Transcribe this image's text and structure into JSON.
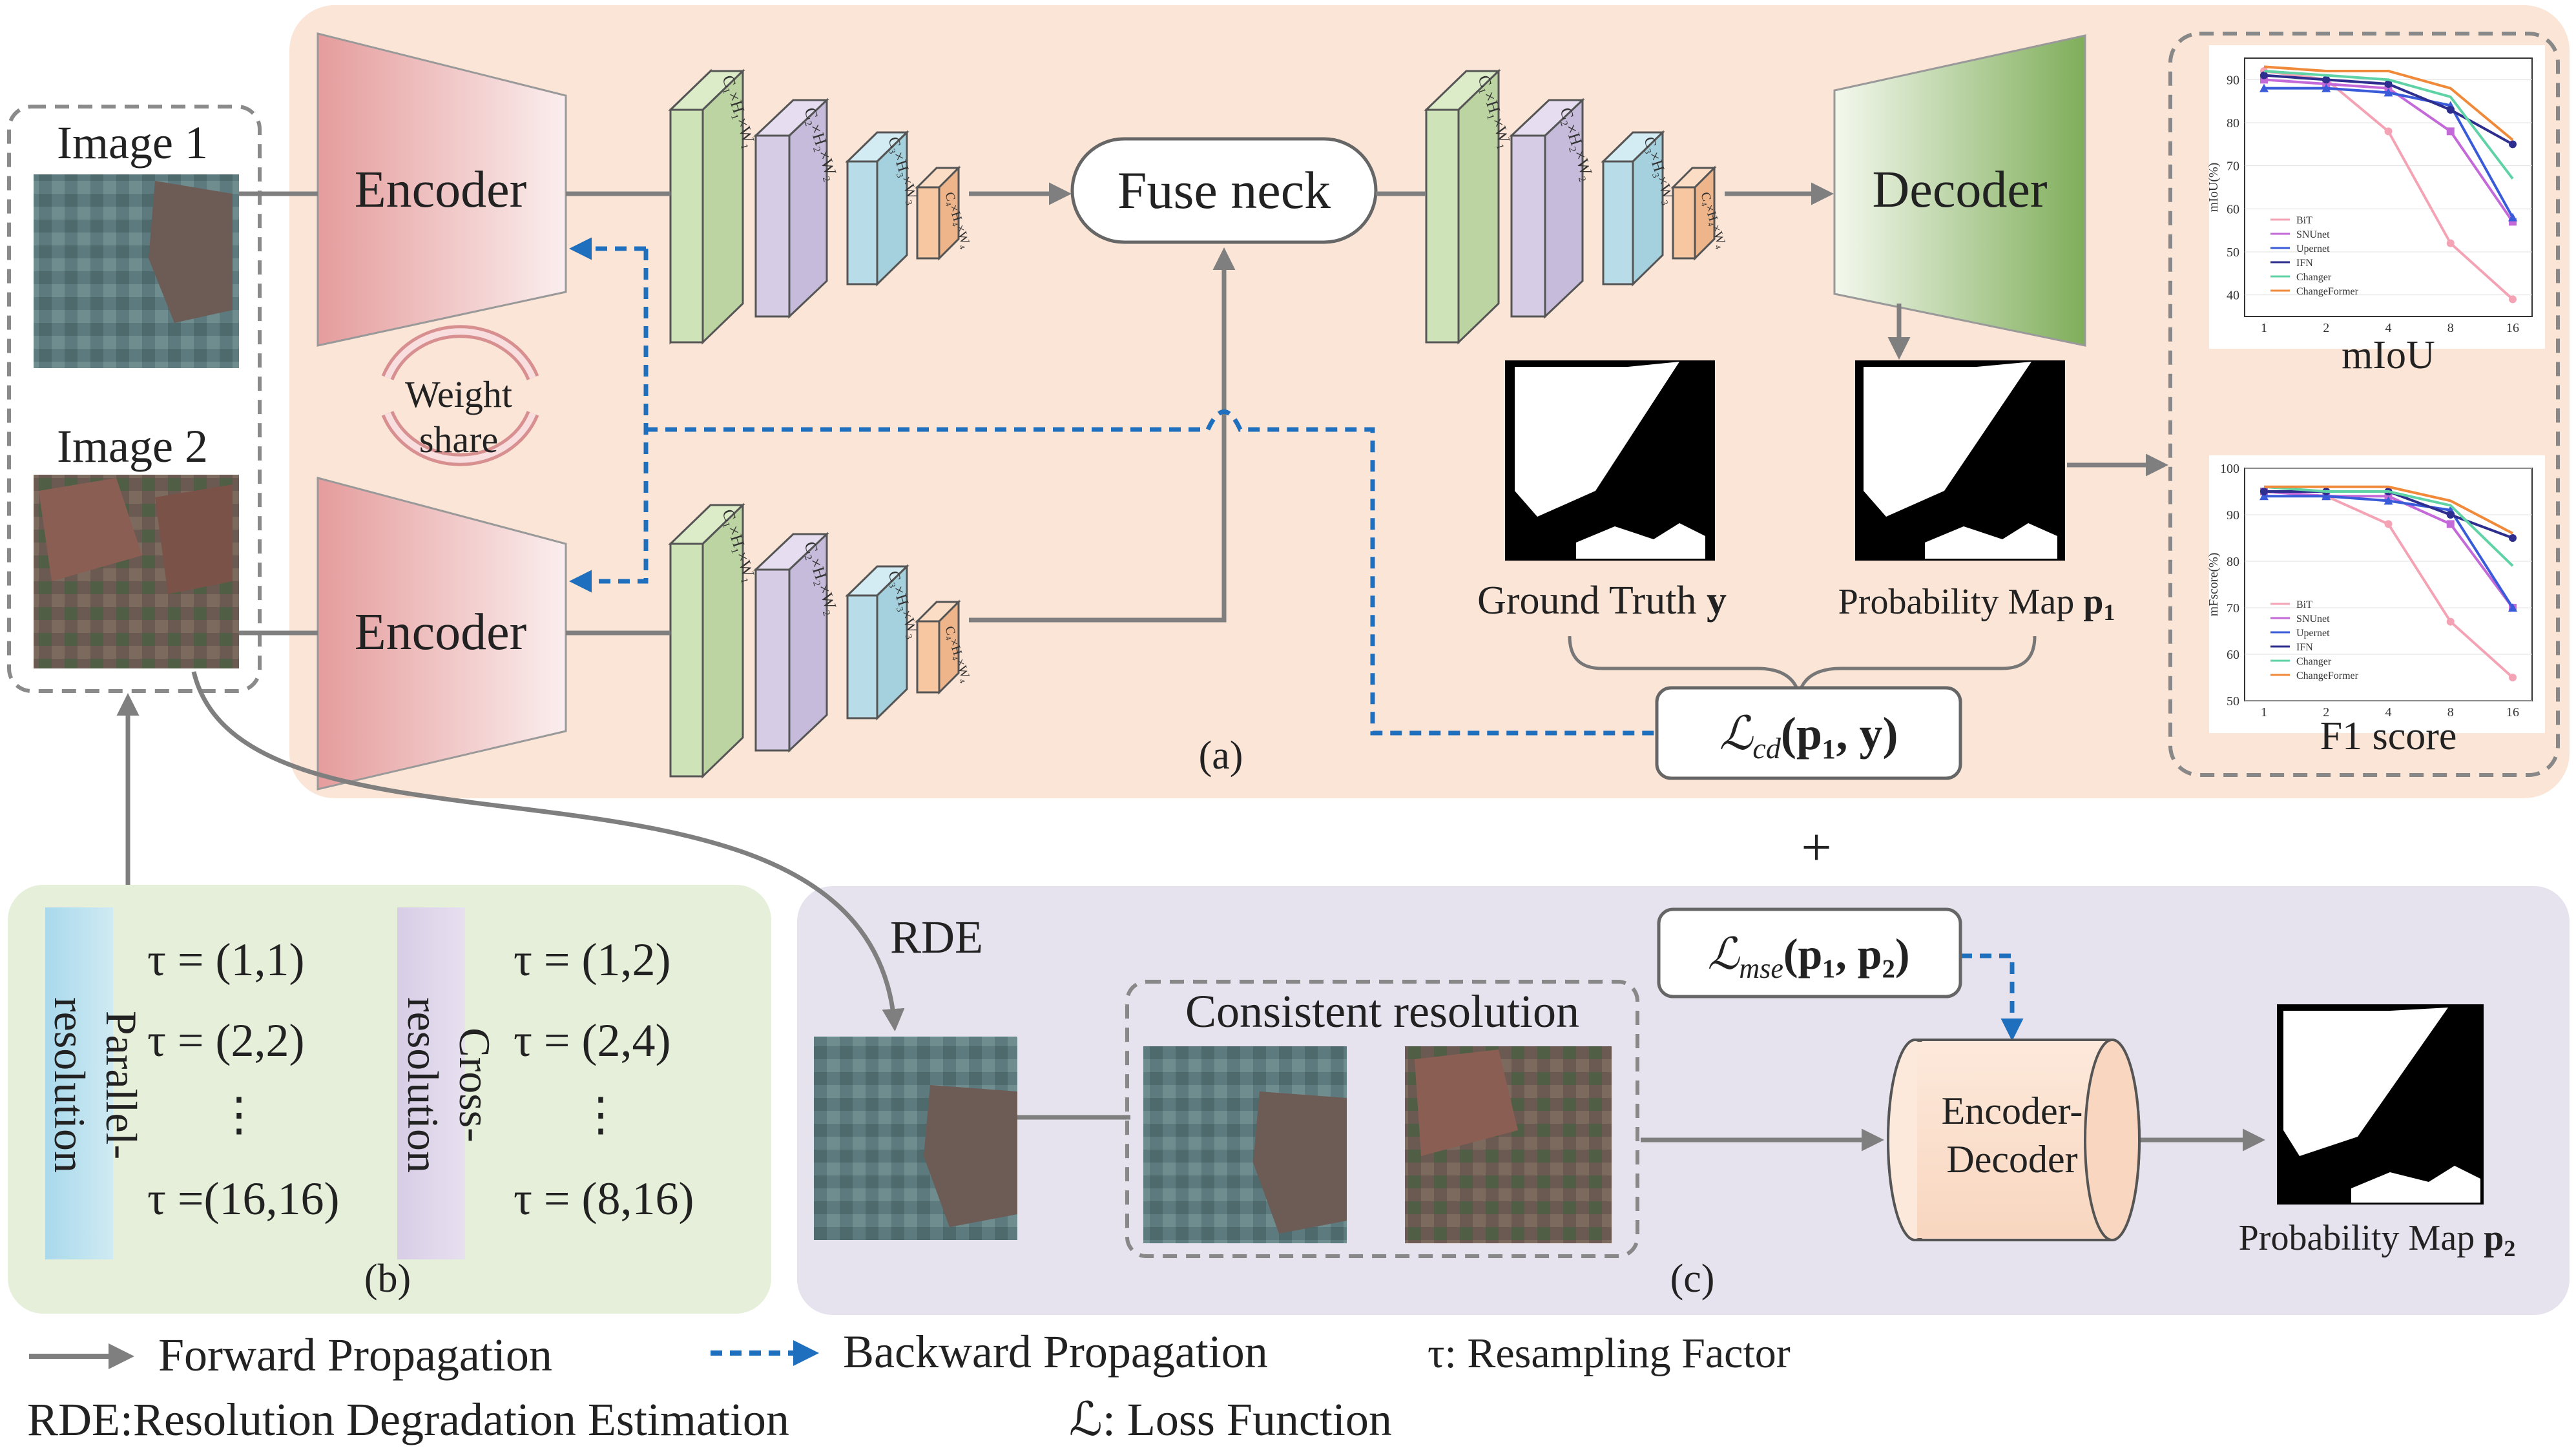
{
  "panels": {
    "a_label": "(a)",
    "b_label": "(b)",
    "c_label": "(c)",
    "plus": "+"
  },
  "inputs": {
    "image1_label": "Image 1",
    "image2_label": "Image 2"
  },
  "blocks": {
    "encoder_top": "Encoder",
    "encoder_bottom": "Encoder",
    "weight_share_line1": "Weight",
    "weight_share_line2": "share",
    "fuse_neck": "Fuse neck",
    "decoder": "Decoder",
    "encoder_decoder_line1": "Encoder-",
    "encoder_decoder_line2": "Decoder"
  },
  "features": {
    "f1": "C₁×H₁×W₁",
    "f2": "C₂×H₂×W₂",
    "f3": "C₃×H₃×W₃",
    "f4": "C₄×H₄×W₄"
  },
  "outputs": {
    "ground_truth": "Ground Truth",
    "ground_truth_sym": "y",
    "prob_map_1": "Probability Map",
    "prob_map_1_sym": "p",
    "prob_map_1_sub": "1",
    "prob_map_2": "Probability Map",
    "prob_map_2_sym": "p",
    "prob_map_2_sub": "2"
  },
  "losses": {
    "cd": "ℒ",
    "cd_sub": "cd",
    "cd_args": "(p₁, y)",
    "mse": "ℒ",
    "mse_sub": "mse",
    "mse_args": "(p₁, p₂)"
  },
  "rde": {
    "label": "RDE",
    "consistent": "Consistent resolution"
  },
  "resample": {
    "parallel_line1": "Parallel-",
    "parallel_line2": "resolution",
    "cross_line1": "Cross-",
    "cross_line2": "resolution",
    "rows": [
      {
        "left": "τ = (1,1)",
        "right": "τ = (1,2)"
      },
      {
        "left": "τ = (2,2)",
        "right": "τ = (2,4)"
      },
      {
        "left": "⋮",
        "right": "⋮"
      },
      {
        "left": "τ =(16,16)",
        "right": "τ = (8,16)"
      }
    ]
  },
  "legend": {
    "forward": "Forward Propagation",
    "backward": "Backward Propagation",
    "tau": "τ: Resampling Factor",
    "rde": "RDE:Resolution Degradation Estimation",
    "loss": "ℒ: Loss Function"
  },
  "colors": {
    "panel_a": "#fbe5d6",
    "panel_b": "#e6efd9",
    "panel_c": "#e6e3ee",
    "encoder": "#e8a6a6",
    "decoder": "#8db56a",
    "feat1": "#cfe3b8",
    "feat2": "#d6cce6",
    "feat3": "#b9dde8",
    "feat4": "#f6c7a1",
    "arrow": "#7f7f7f",
    "backward": "#1f6fbf"
  },
  "chart_data": [
    {
      "type": "line",
      "caption": "mIoU",
      "ylabel": "mIoU(%)",
      "categories": [
        "1",
        "2",
        "4",
        "8",
        "16"
      ],
      "ylim": [
        35,
        95
      ],
      "yticks": [
        40,
        50,
        60,
        70,
        80,
        90
      ],
      "legend_position": "bottom-left",
      "series": [
        {
          "name": "BiT",
          "color": "#f4a3b5",
          "marker": "circle",
          "values": [
            92,
            90,
            78,
            52,
            39
          ]
        },
        {
          "name": "SNUnet",
          "color": "#c46ad8",
          "marker": "square",
          "values": [
            90,
            89,
            88,
            78,
            57
          ]
        },
        {
          "name": "Upernet",
          "color": "#3a5bd9",
          "marker": "triangle",
          "values": [
            88,
            88,
            87,
            84,
            58
          ]
        },
        {
          "name": "IFN",
          "color": "#2e2e8e",
          "marker": "circle",
          "values": [
            91,
            90,
            89,
            83,
            75
          ]
        },
        {
          "name": "Changer",
          "color": "#5fd3a6",
          "marker": "none",
          "values": [
            92,
            91,
            90,
            86,
            67
          ]
        },
        {
          "name": "ChangeFormer",
          "color": "#f08a3a",
          "marker": "none",
          "values": [
            93,
            92,
            92,
            88,
            76
          ]
        }
      ]
    },
    {
      "type": "line",
      "caption": "F1 score",
      "ylabel": "mFscore(%)",
      "categories": [
        "1",
        "2",
        "4",
        "8",
        "16"
      ],
      "ylim": [
        50,
        100
      ],
      "yticks": [
        50,
        60,
        70,
        80,
        90,
        100
      ],
      "legend_position": "bottom-left",
      "series": [
        {
          "name": "BiT",
          "color": "#f4a3b5",
          "marker": "circle",
          "values": [
            95,
            94,
            88,
            67,
            55
          ]
        },
        {
          "name": "SNUnet",
          "color": "#c46ad8",
          "marker": "square",
          "values": [
            95,
            94,
            94,
            88,
            70
          ]
        },
        {
          "name": "Upernet",
          "color": "#3a5bd9",
          "marker": "triangle",
          "values": [
            94,
            94,
            93,
            91,
            70
          ]
        },
        {
          "name": "IFN",
          "color": "#2e2e8e",
          "marker": "circle",
          "values": [
            95,
            95,
            95,
            90,
            85
          ]
        },
        {
          "name": "Changer",
          "color": "#5fd3a6",
          "marker": "none",
          "values": [
            96,
            95,
            95,
            92,
            79
          ]
        },
        {
          "name": "ChangeFormer",
          "color": "#f08a3a",
          "marker": "none",
          "values": [
            96,
            96,
            96,
            93,
            86
          ]
        }
      ]
    }
  ]
}
